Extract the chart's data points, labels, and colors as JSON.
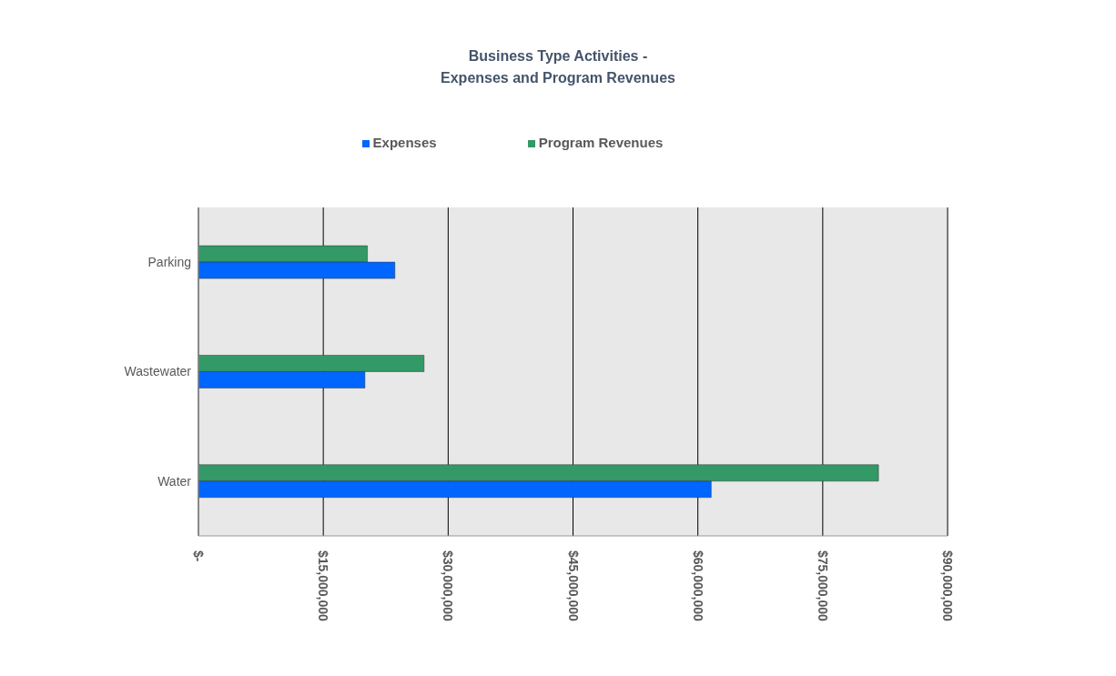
{
  "chart_data": {
    "type": "bar",
    "orientation": "horizontal",
    "title": "Business Type Activities -\nExpenses and Program Revenues",
    "categories": [
      "Parking",
      "Wastewater",
      "Water"
    ],
    "series": [
      {
        "name": "Program Revenues",
        "color": "#339966",
        "values": [
          20300000,
          27100000,
          81700000
        ]
      },
      {
        "name": "Expenses",
        "color": "#0066ff",
        "values": [
          23600000,
          20000000,
          61600000
        ]
      }
    ],
    "xlim": [
      0,
      90000000
    ],
    "xticks": [
      {
        "value": 0,
        "label": "$-"
      },
      {
        "value": 15000000,
        "label": "$15,000,000"
      },
      {
        "value": 30000000,
        "label": "$30,000,000"
      },
      {
        "value": 45000000,
        "label": "$45,000,000"
      },
      {
        "value": 60000000,
        "label": "$60,000,000"
      },
      {
        "value": 75000000,
        "label": "$75,000,000"
      },
      {
        "value": 90000000,
        "label": "$90,000,000"
      }
    ],
    "grid": "x",
    "legend": "top"
  }
}
